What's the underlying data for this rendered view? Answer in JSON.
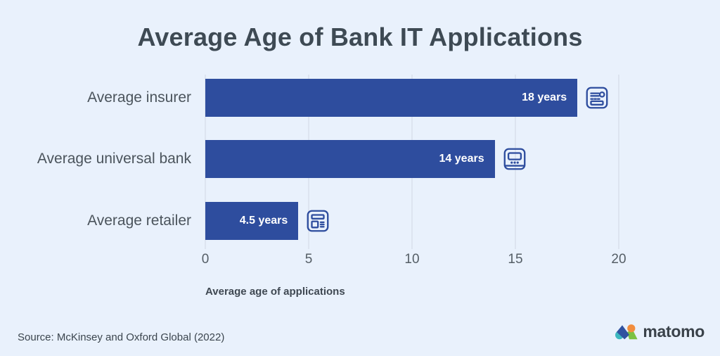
{
  "title": "Average Age of Bank IT Applications",
  "chart_data": {
    "type": "bar",
    "orientation": "horizontal",
    "categories": [
      "Average insurer",
      "Average universal bank",
      "Average retailer"
    ],
    "values": [
      18,
      14,
      4.5
    ],
    "value_labels": [
      "18 years",
      "14 years",
      "4.5 years"
    ],
    "icons": [
      "insurance-policy-icon",
      "atm-machine-icon",
      "storefront-newspaper-icon"
    ],
    "xlabel": "Average age of applications",
    "xlim": [
      0,
      20
    ],
    "xticks": [
      "0",
      "5",
      "10",
      "15",
      "20"
    ],
    "grid": "vertical-gridlines",
    "legend": "none",
    "bar_color": "#2e4d9e",
    "background_color": "#e9f1fc"
  },
  "footer": {
    "source": "Source: McKinsey and Oxford Global (2022)",
    "logo_text": "matomo",
    "logo_colors": {
      "teal": "#3eb8c0",
      "blue": "#3152a0",
      "orange": "#f28d3e",
      "green": "#7bc143"
    }
  }
}
